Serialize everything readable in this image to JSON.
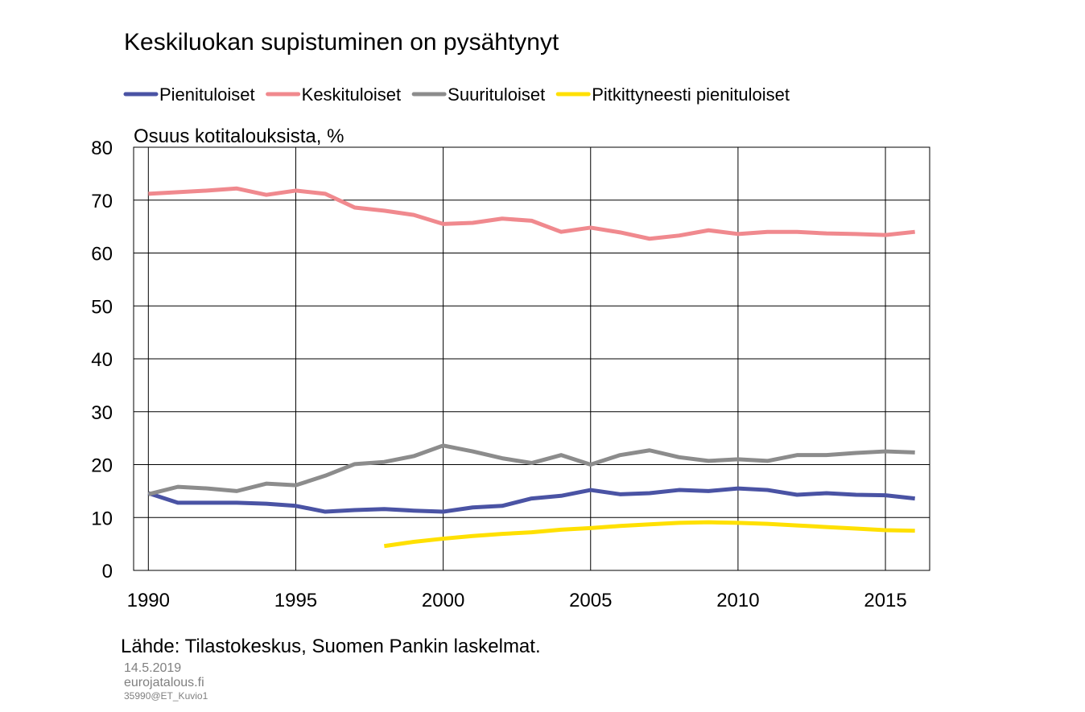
{
  "chart_data": {
    "type": "line",
    "title": "Keskiluokan supistuminen on pysähtynyt",
    "ylabel": "Osuus kotitalouksista, %",
    "source": "Lähde: Tilastokeskus, Suomen Pankin laskelmat.",
    "footer": [
      "14.5.2019",
      "eurojatalous.fi",
      "35990@ET_Kuvio1"
    ],
    "x": [
      1990,
      1991,
      1992,
      1993,
      1994,
      1995,
      1996,
      1997,
      1998,
      1999,
      2000,
      2001,
      2002,
      2003,
      2004,
      2005,
      2006,
      2007,
      2008,
      2009,
      2010,
      2011,
      2012,
      2013,
      2014,
      2015,
      2016
    ],
    "xlim": [
      1989.5,
      2016.5
    ],
    "xticks": [
      1990,
      1995,
      2000,
      2005,
      2010,
      2015
    ],
    "ylim": [
      0,
      80
    ],
    "yticks": [
      0,
      10,
      20,
      30,
      40,
      50,
      60,
      70,
      80
    ],
    "grid": true,
    "series": [
      {
        "name": "Pienituloiset",
        "color": "#4a53a4",
        "values": [
          14.6,
          12.8,
          12.8,
          12.8,
          12.6,
          12.2,
          11.1,
          11.4,
          11.6,
          11.3,
          11.1,
          11.9,
          12.2,
          13.6,
          14.1,
          15.2,
          14.4,
          14.6,
          15.2,
          15.0,
          15.5,
          15.2,
          14.3,
          14.6,
          14.3,
          14.2,
          13.6
        ]
      },
      {
        "name": "Keskituloiset",
        "color": "#f0898e",
        "values": [
          71.2,
          71.5,
          71.8,
          72.2,
          71.0,
          71.8,
          71.2,
          68.6,
          68.0,
          67.2,
          65.5,
          65.7,
          66.5,
          66.1,
          64.0,
          64.8,
          63.9,
          62.7,
          63.3,
          64.3,
          63.6,
          64.0,
          64.0,
          63.7,
          63.6,
          63.4,
          64.0
        ]
      },
      {
        "name": "Suurituloiset",
        "color": "#8c8c8c",
        "values": [
          14.4,
          15.8,
          15.5,
          15.0,
          16.4,
          16.1,
          17.9,
          20.1,
          20.5,
          21.6,
          23.6,
          22.5,
          21.2,
          20.3,
          21.8,
          20.0,
          21.8,
          22.7,
          21.4,
          20.7,
          21.0,
          20.7,
          21.8,
          21.8,
          22.2,
          22.5,
          22.3
        ]
      },
      {
        "name": "Pitkittyneesti pienituloiset",
        "color": "#ffe000",
        "values": [
          null,
          null,
          null,
          null,
          null,
          null,
          null,
          null,
          4.6,
          5.4,
          6.0,
          6.5,
          6.9,
          7.2,
          7.7,
          8.0,
          8.4,
          8.7,
          9.0,
          9.1,
          9.0,
          8.8,
          8.5,
          8.2,
          7.9,
          7.6,
          7.5
        ]
      }
    ]
  }
}
